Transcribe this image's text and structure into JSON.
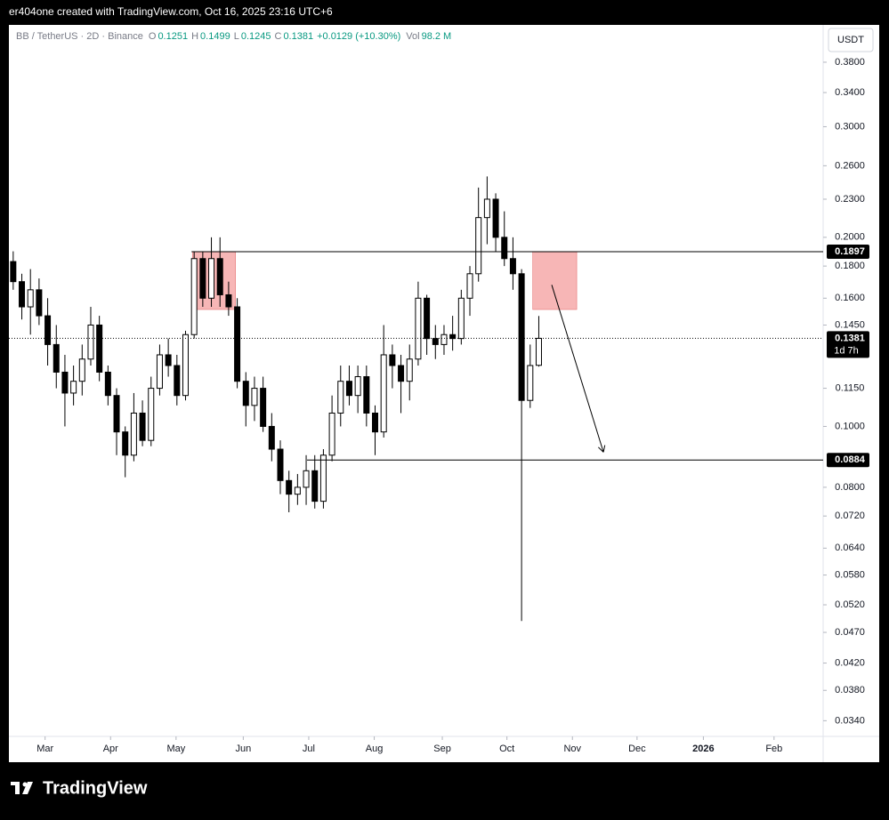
{
  "header": "er404one created with TradingView.com, Oct 16, 2025 23:16 UTC+6",
  "footer_brand": "TradingView",
  "chart_data": {
    "type": "candlestick",
    "symbol": "BB / TetherUS · 2D · Binance",
    "ohlc_legend": [
      {
        "key": "O",
        "value": "0.1251"
      },
      {
        "key": "H",
        "value": "0.1499"
      },
      {
        "key": "L",
        "value": "0.1245"
      },
      {
        "key": "C",
        "value": "0.1381"
      }
    ],
    "change": "+0.0129 (+10.30%)",
    "volume": {
      "key": "Vol",
      "value": "98.2 M"
    },
    "currency": "USDT",
    "log_scale": true,
    "ylim": [
      0.0321,
      0.4357
    ],
    "xlim": [
      -0.5,
      94
    ],
    "yticks": [
      {
        "value": 0.38,
        "label": "0.3800"
      },
      {
        "value": 0.34,
        "label": "0.3400"
      },
      {
        "value": 0.3,
        "label": "0.3000"
      },
      {
        "value": 0.26,
        "label": "0.2600"
      },
      {
        "value": 0.23,
        "label": "0.2300"
      },
      {
        "value": 0.2,
        "label": "0.2000"
      },
      {
        "value": 0.18,
        "label": "0.1800"
      },
      {
        "value": 0.16,
        "label": "0.1600"
      },
      {
        "value": 0.145,
        "label": "0.1450"
      },
      {
        "value": 0.115,
        "label": "0.1150"
      },
      {
        "value": 0.1,
        "label": "0.1000"
      },
      {
        "value": 0.08,
        "label": "0.0800"
      },
      {
        "value": 0.072,
        "label": "0.0720"
      },
      {
        "value": 0.064,
        "label": "0.0640"
      },
      {
        "value": 0.058,
        "label": "0.0580"
      },
      {
        "value": 0.052,
        "label": "0.0520"
      },
      {
        "value": 0.047,
        "label": "0.0470"
      },
      {
        "value": 0.042,
        "label": "0.0420"
      },
      {
        "value": 0.038,
        "label": "0.0380"
      },
      {
        "value": 0.034,
        "label": "0.0340"
      }
    ],
    "xticks": [
      {
        "value": 3.7,
        "label": "Mar"
      },
      {
        "value": 11.3,
        "label": "Apr"
      },
      {
        "value": 18.9,
        "label": "May"
      },
      {
        "value": 26.7,
        "label": "Jun"
      },
      {
        "value": 34.3,
        "label": "Jul"
      },
      {
        "value": 41.9,
        "label": "Aug"
      },
      {
        "value": 49.8,
        "label": "Sep"
      },
      {
        "value": 57.3,
        "label": "Oct"
      },
      {
        "value": 64.9,
        "label": "Nov"
      },
      {
        "value": 72.4,
        "label": "Dec"
      },
      {
        "value": 80.1,
        "label": "2026"
      },
      {
        "value": 88.3,
        "label": "Feb"
      }
    ],
    "open": [
      0.183,
      0.17,
      0.155,
      0.165,
      0.15,
      0.135,
      0.122,
      0.113,
      0.118,
      0.128,
      0.145,
      0.122,
      0.112,
      0.098,
      0.09,
      0.105,
      0.095,
      0.115,
      0.13,
      0.125,
      0.112,
      0.14,
      0.185,
      0.16,
      0.185,
      0.162,
      0.155,
      0.118,
      0.108,
      0.115,
      0.1,
      0.092,
      0.082,
      0.078,
      0.08,
      0.085,
      0.076,
      0.09,
      0.105,
      0.118,
      0.112,
      0.12,
      0.105,
      0.098,
      0.13,
      0.125,
      0.118,
      0.128,
      0.16,
      0.138,
      0.135,
      0.14,
      0.138,
      0.16,
      0.175,
      0.215,
      0.23,
      0.2,
      0.185,
      0.175,
      0.11,
      0.1251
    ],
    "high": [
      0.19,
      0.175,
      0.178,
      0.172,
      0.16,
      0.145,
      0.13,
      0.125,
      0.135,
      0.155,
      0.15,
      0.125,
      0.115,
      0.1,
      0.113,
      0.11,
      0.12,
      0.135,
      0.138,
      0.13,
      0.142,
      0.19,
      0.19,
      0.2,
      0.2,
      0.17,
      0.16,
      0.122,
      0.12,
      0.12,
      0.105,
      0.095,
      0.085,
      0.084,
      0.09,
      0.09,
      0.092,
      0.112,
      0.125,
      0.125,
      0.125,
      0.125,
      0.108,
      0.145,
      0.135,
      0.13,
      0.135,
      0.17,
      0.162,
      0.145,
      0.145,
      0.15,
      0.165,
      0.18,
      0.24,
      0.25,
      0.235,
      0.22,
      0.2,
      0.178,
      0.135,
      0.1499
    ],
    "low": [
      0.165,
      0.148,
      0.14,
      0.145,
      0.125,
      0.115,
      0.1,
      0.108,
      0.112,
      0.125,
      0.118,
      0.108,
      0.09,
      0.083,
      0.088,
      0.093,
      0.093,
      0.112,
      0.12,
      0.108,
      0.11,
      0.138,
      0.155,
      0.155,
      0.155,
      0.15,
      0.115,
      0.1,
      0.102,
      0.098,
      0.088,
      0.078,
      0.073,
      0.075,
      0.075,
      0.074,
      0.074,
      0.088,
      0.1,
      0.108,
      0.105,
      0.1,
      0.09,
      0.096,
      0.115,
      0.105,
      0.11,
      0.125,
      0.13,
      0.128,
      0.13,
      0.132,
      0.135,
      0.15,
      0.17,
      0.195,
      0.19,
      0.18,
      0.165,
      0.049,
      0.107,
      0.1245
    ],
    "close": [
      0.17,
      0.155,
      0.165,
      0.15,
      0.135,
      0.122,
      0.113,
      0.118,
      0.128,
      0.145,
      0.122,
      0.112,
      0.098,
      0.09,
      0.105,
      0.095,
      0.115,
      0.13,
      0.125,
      0.112,
      0.14,
      0.185,
      0.16,
      0.185,
      0.162,
      0.155,
      0.118,
      0.108,
      0.115,
      0.1,
      0.092,
      0.082,
      0.078,
      0.08,
      0.085,
      0.076,
      0.09,
      0.105,
      0.118,
      0.112,
      0.12,
      0.105,
      0.098,
      0.13,
      0.125,
      0.118,
      0.128,
      0.16,
      0.138,
      0.135,
      0.14,
      0.138,
      0.16,
      0.175,
      0.215,
      0.23,
      0.2,
      0.185,
      0.175,
      0.11,
      0.125,
      0.1381
    ],
    "up_color": "#ffffff",
    "down_color": "#000000",
    "wick_color": "#000000",
    "last_price": 0.1381,
    "countdown": "1d 7h",
    "levels": [
      {
        "value": 0.1897,
        "from": 20.7
      },
      {
        "value": 0.0884,
        "from": 34.1
      }
    ],
    "zones": [
      {
        "top": 0.1897,
        "bottom": 0.1535,
        "from": 20.8,
        "to": 25.8
      },
      {
        "top": 0.1897,
        "bottom": 0.1535,
        "from": 60.3,
        "to": 65.4
      }
    ],
    "zone_color": "#f7b6b6",
    "arrow": {
      "from": [
        62.5,
        0.168
      ],
      "to": [
        68.5,
        0.091
      ]
    }
  }
}
